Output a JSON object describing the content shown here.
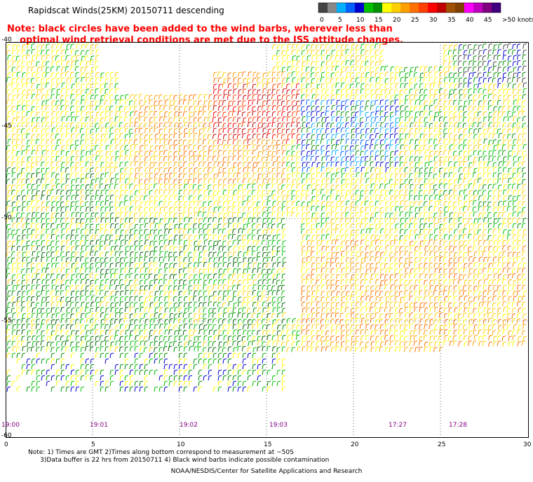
{
  "title": "Rapidscat Winds(25KM) 20150711 descending",
  "note": "Note: black circles have been added to the wind barbs, wherever less than\n    optimal wind retrieval conditions are met due to the ISS attitude changes.",
  "speed_scale": {
    "colors": [
      "#444444",
      "#888888",
      "#00b0ff",
      "#0060ff",
      "#0000cc",
      "#00c000",
      "#009000",
      "#ffff00",
      "#ffd000",
      "#ffa000",
      "#ff7000",
      "#ff4000",
      "#ff0000",
      "#c00000",
      "#a05000",
      "#804000",
      "#ff00ff",
      "#c000c0",
      "#800080",
      "#400080"
    ],
    "labels": [
      "0",
      "5",
      "10",
      "15",
      "20",
      "25",
      "30",
      "35",
      "40",
      "45",
      ">50 knots"
    ]
  },
  "axes": {
    "lat_labels": [
      "-40",
      "-45",
      "-50",
      "-55",
      "-60"
    ],
    "lon_labels": [
      "0",
      "5",
      "10",
      "15",
      "20",
      "25",
      "30"
    ],
    "times": [
      "19:00",
      "19:01",
      "19:02",
      "19:03",
      "17:27",
      "17:28"
    ]
  },
  "footer": "Note: 1) Times are GMT 2)Times along bottom correspond to measurement at ~50S\n      3)Data buffer is 22 hrs from 20150711 4) Black wind barbs indicate possible contamination",
  "credit": "NOAA/NESDIS/Center for Satellite Applications and Research"
}
